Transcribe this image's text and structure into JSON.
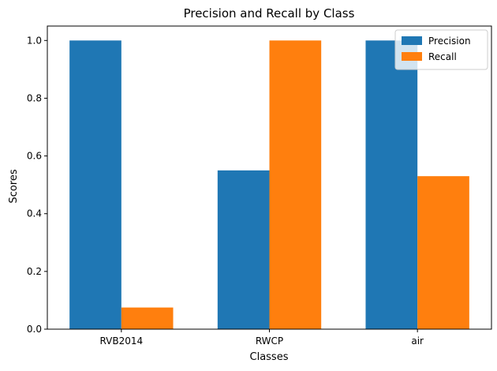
{
  "chart_data": {
    "type": "bar",
    "title": "Precision and Recall by Class",
    "xlabel": "Classes",
    "ylabel": "Scores",
    "categories": [
      "RVB2014",
      "RWCP",
      "air"
    ],
    "series": [
      {
        "name": "Precision",
        "values": [
          1.0,
          0.55,
          1.0
        ],
        "color": "#1f77b4"
      },
      {
        "name": "Recall",
        "values": [
          0.075,
          1.0,
          0.53
        ],
        "color": "#ff7f0e"
      }
    ],
    "ylim": [
      0,
      1.05
    ],
    "yticks": [
      "0.0",
      "0.2",
      "0.4",
      "0.6",
      "0.8",
      "1.0"
    ],
    "legend_position": "top-right",
    "grid": false
  }
}
